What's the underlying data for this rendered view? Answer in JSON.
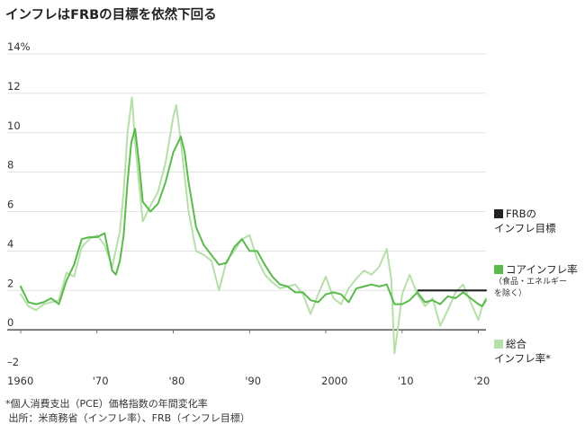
{
  "title": "インフレはFRBの目標を依然下回る",
  "colors": {
    "frb": "#222222",
    "core": "#5aba4b",
    "headline": "#b6dfa9",
    "zero": "#333333",
    "grid": "#d9d9d9"
  },
  "legend": [
    {
      "lines": [
        "FRBの",
        "インフレ目標"
      ],
      "sub": []
    },
    {
      "lines": [
        "コアインフレ率"
      ],
      "sub": [
        "（食品・エネルギー",
        "を除く）"
      ]
    },
    {
      "lines": [
        "総合",
        "インフレ率*"
      ],
      "sub": []
    }
  ],
  "footnote": [
    "*個人消費支出（PCE）価格指数の年間変化率",
    " 出所：米商務省（インフレ率）、FRB（インフレ目標）"
  ],
  "chart_data": {
    "type": "line",
    "title": "インフレはFRBの目標を依然下回る",
    "y_ticks": [
      "14%",
      "12",
      "10",
      "8",
      "6",
      "4",
      "2",
      "0",
      "–2"
    ],
    "x_ticks": [
      "1960",
      "'70",
      "'80",
      "'90",
      "2000",
      "'10",
      "'20"
    ],
    "xlim": [
      1960,
      2021
    ],
    "ylim": [
      -2,
      14
    ],
    "grid": true,
    "series": [
      {
        "name": "FRBのインフレ目標",
        "color": "#222222",
        "points": [
          [
            2012.1,
            2.0
          ],
          [
            2021.0,
            2.0
          ]
        ]
      },
      {
        "name": "コアインフレ率（食品・エネルギーを除く）",
        "color": "#5aba4b",
        "points": [
          [
            1960,
            2.2
          ],
          [
            1961,
            1.4
          ],
          [
            1962,
            1.3
          ],
          [
            1963,
            1.4
          ],
          [
            1964,
            1.6
          ],
          [
            1965,
            1.3
          ],
          [
            1966,
            2.5
          ],
          [
            1967,
            3.3
          ],
          [
            1968,
            4.6
          ],
          [
            1969,
            4.7
          ],
          [
            1970,
            4.7
          ],
          [
            1971,
            4.9
          ],
          [
            1972,
            3.0
          ],
          [
            1972.5,
            2.8
          ],
          [
            1973,
            3.5
          ],
          [
            1973.5,
            4.8
          ],
          [
            1974,
            7.5
          ],
          [
            1974.5,
            9.5
          ],
          [
            1975,
            10.2
          ],
          [
            1975.5,
            8.5
          ],
          [
            1976,
            6.5
          ],
          [
            1977,
            6.0
          ],
          [
            1978,
            6.4
          ],
          [
            1979,
            7.5
          ],
          [
            1980,
            9.0
          ],
          [
            1981,
            9.8
          ],
          [
            1981.5,
            9.0
          ],
          [
            1982,
            7.5
          ],
          [
            1983,
            5.2
          ],
          [
            1984,
            4.3
          ],
          [
            1985,
            3.8
          ],
          [
            1986,
            3.3
          ],
          [
            1987,
            3.4
          ],
          [
            1988,
            4.2
          ],
          [
            1989,
            4.6
          ],
          [
            1990,
            4.0
          ],
          [
            1991,
            4.0
          ],
          [
            1992,
            3.3
          ],
          [
            1993,
            2.7
          ],
          [
            1994,
            2.3
          ],
          [
            1995,
            2.2
          ],
          [
            1996,
            1.9
          ],
          [
            1997,
            1.9
          ],
          [
            1998,
            1.5
          ],
          [
            1999,
            1.4
          ],
          [
            2000,
            1.8
          ],
          [
            2001,
            1.9
          ],
          [
            2002,
            1.8
          ],
          [
            2003,
            1.4
          ],
          [
            2004,
            2.1
          ],
          [
            2005,
            2.2
          ],
          [
            2006,
            2.3
          ],
          [
            2007,
            2.2
          ],
          [
            2008,
            2.3
          ],
          [
            2009,
            1.3
          ],
          [
            2010,
            1.3
          ],
          [
            2011,
            1.5
          ],
          [
            2012,
            1.9
          ],
          [
            2013,
            1.4
          ],
          [
            2014,
            1.5
          ],
          [
            2015,
            1.3
          ],
          [
            2016,
            1.7
          ],
          [
            2017,
            1.6
          ],
          [
            2018,
            1.9
          ],
          [
            2019,
            1.6
          ],
          [
            2020,
            1.3
          ],
          [
            2020.5,
            1.2
          ],
          [
            2021,
            1.5
          ]
        ]
      },
      {
        "name": "総合インフレ率*",
        "color": "#b6dfa9",
        "points": [
          [
            1960,
            1.8
          ],
          [
            1961,
            1.2
          ],
          [
            1962,
            1.0
          ],
          [
            1963,
            1.3
          ],
          [
            1964,
            1.4
          ],
          [
            1965,
            1.5
          ],
          [
            1966,
            2.9
          ],
          [
            1967,
            2.7
          ],
          [
            1968,
            4.2
          ],
          [
            1969,
            4.6
          ],
          [
            1970,
            4.8
          ],
          [
            1971,
            4.3
          ],
          [
            1972,
            3.2
          ],
          [
            1973,
            5.0
          ],
          [
            1973.5,
            7.0
          ],
          [
            1974,
            10.0
          ],
          [
            1974.6,
            11.8
          ],
          [
            1975,
            9.5
          ],
          [
            1976,
            5.5
          ],
          [
            1977,
            6.3
          ],
          [
            1978,
            7.0
          ],
          [
            1979,
            8.5
          ],
          [
            1980,
            10.8
          ],
          [
            1980.4,
            11.4
          ],
          [
            1981,
            9.5
          ],
          [
            1982,
            6.0
          ],
          [
            1983,
            4.0
          ],
          [
            1984,
            3.8
          ],
          [
            1985,
            3.5
          ],
          [
            1986,
            2.0
          ],
          [
            1987,
            3.5
          ],
          [
            1988,
            4.0
          ],
          [
            1989,
            4.6
          ],
          [
            1990,
            4.8
          ],
          [
            1991,
            3.6
          ],
          [
            1992,
            2.8
          ],
          [
            1993,
            2.4
          ],
          [
            1994,
            2.1
          ],
          [
            1995,
            2.2
          ],
          [
            1996,
            2.3
          ],
          [
            1997,
            1.8
          ],
          [
            1998,
            0.8
          ],
          [
            1999,
            1.8
          ],
          [
            2000,
            2.7
          ],
          [
            2001,
            1.6
          ],
          [
            2002,
            1.3
          ],
          [
            2003,
            2.1
          ],
          [
            2004,
            2.6
          ],
          [
            2005,
            3.0
          ],
          [
            2006,
            2.8
          ],
          [
            2007,
            3.2
          ],
          [
            2008,
            4.1
          ],
          [
            2008.6,
            2.5
          ],
          [
            2009,
            -1.2
          ],
          [
            2009.5,
            0.2
          ],
          [
            2010,
            1.8
          ],
          [
            2011,
            2.8
          ],
          [
            2012,
            1.8
          ],
          [
            2013,
            1.2
          ],
          [
            2014,
            1.6
          ],
          [
            2015,
            0.2
          ],
          [
            2016,
            1.0
          ],
          [
            2017,
            1.9
          ],
          [
            2018,
            2.3
          ],
          [
            2019,
            1.4
          ],
          [
            2020,
            0.5
          ],
          [
            2020.5,
            1.2
          ],
          [
            2021,
            1.6
          ]
        ]
      }
    ]
  }
}
